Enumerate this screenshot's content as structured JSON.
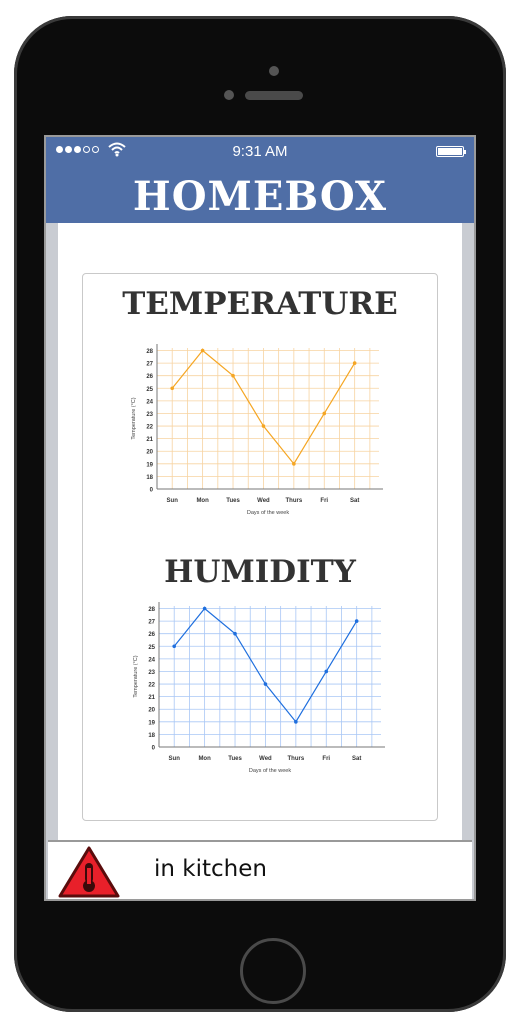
{
  "status_bar": {
    "time": "9:31 AM",
    "signal_bars_filled": 3,
    "signal_bars_total": 5,
    "wifi_icon": "wifi-icon",
    "battery_icon": "battery-icon"
  },
  "header": {
    "title": "HOMEBOX"
  },
  "colors": {
    "header": "#4f6ea6",
    "temperature_line": "#f5a623",
    "temperature_grid": "#f7d3a1",
    "humidity_line": "#1f6fde",
    "humidity_grid": "#a9c7f5",
    "alert_red": "#e8202a"
  },
  "sections": [
    {
      "title": "TEMPERATURE"
    },
    {
      "title": "HUMIDITY"
    }
  ],
  "chart_data": [
    {
      "type": "line",
      "categories": [
        "Sun",
        "Mon",
        "Tues",
        "Wed",
        "Thurs",
        "Fri",
        "Sat"
      ],
      "values": [
        25,
        28,
        26,
        22,
        19,
        23,
        27
      ],
      "xlabel": "Days of the week",
      "ylabel": "Temperature (°C)",
      "ylim": [
        0,
        28
      ],
      "yticks": [
        "0",
        "18",
        "19",
        "20",
        "21",
        "22",
        "23",
        "24",
        "25",
        "26",
        "27",
        "28"
      ],
      "grid": true
    },
    {
      "type": "line",
      "categories": [
        "Sun",
        "Mon",
        "Tues",
        "Wed",
        "Thurs",
        "Fri",
        "Sat"
      ],
      "values": [
        25,
        28,
        26,
        22,
        19,
        23,
        27
      ],
      "xlabel": "Days of the week",
      "ylabel": "Temperature (°C)",
      "ylim": [
        0,
        28
      ],
      "yticks": [
        "0",
        "18",
        "19",
        "20",
        "21",
        "22",
        "23",
        "24",
        "25",
        "26",
        "27",
        "28"
      ],
      "grid": true
    }
  ],
  "alert": {
    "icon": "warning-thermometer-icon",
    "text": "in kitchen"
  }
}
